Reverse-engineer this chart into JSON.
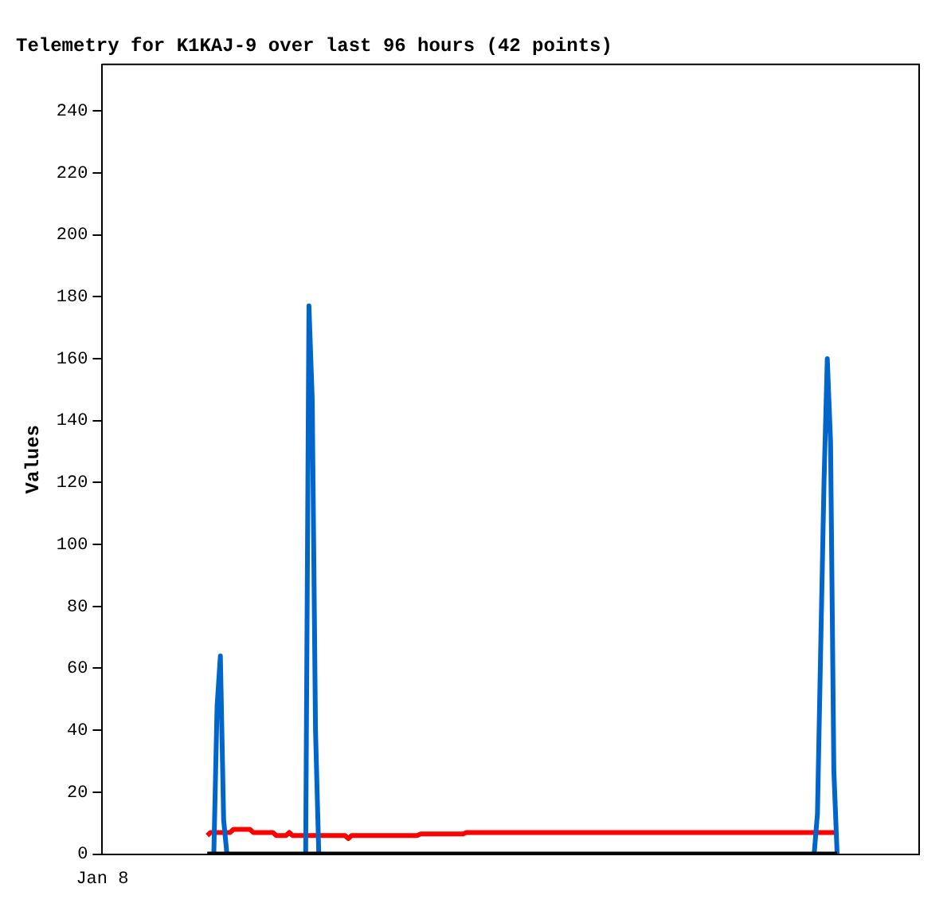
{
  "chart_data": {
    "type": "line",
    "title": "Telemetry for K1KAJ-9 over last 96 hours (42 points)",
    "ylabel": "Values",
    "categories": [
      null,
      null,
      null,
      null,
      null,
      null,
      null,
      null,
      null,
      null,
      null,
      null,
      null,
      null,
      null,
      null,
      null,
      null,
      null,
      null,
      null,
      null,
      null,
      null,
      null,
      null,
      null,
      null,
      null,
      null,
      null,
      null,
      null,
      null,
      null,
      null,
      null,
      null,
      null,
      null,
      null,
      null,
      null,
      null,
      null,
      null,
      null,
      null,
      null,
      null,
      null,
      null,
      null,
      null,
      null,
      null,
      null,
      null,
      null,
      null,
      null,
      null,
      null,
      null,
      null,
      null,
      null,
      null,
      null,
      null,
      null,
      null,
      null,
      null,
      null,
      null,
      null,
      null,
      null,
      null,
      null,
      null,
      null,
      null,
      null,
      null,
      null,
      null,
      null,
      null,
      null,
      null,
      null,
      null,
      null,
      null,
      null,
      null,
      null,
      null,
      null,
      null,
      null,
      null,
      null,
      null,
      null,
      null,
      null,
      null,
      null,
      null,
      null,
      null,
      null,
      null,
      null,
      null,
      null,
      null,
      null,
      null,
      null,
      null,
      null,
      null,
      null,
      null,
      null,
      null,
      null,
      null,
      null,
      null,
      null,
      null,
      null,
      null,
      null,
      null,
      null,
      null,
      null,
      null,
      null,
      null,
      null,
      null,
      null,
      null,
      null,
      null,
      null,
      null,
      null,
      null,
      null,
      null,
      null,
      null,
      null,
      null,
      null,
      null,
      null,
      null,
      null,
      null,
      null,
      null,
      null,
      null,
      null,
      null,
      null,
      null,
      null,
      null,
      null,
      null,
      null,
      null,
      null,
      null,
      null,
      null,
      null,
      null,
      null,
      null,
      null,
      null,
      null,
      null,
      null,
      null,
      null,
      null,
      null,
      null,
      null,
      null,
      null,
      null,
      null,
      null,
      null,
      null,
      null,
      null,
      null,
      null,
      null,
      null,
      null,
      null,
      null,
      null,
      null,
      null,
      null,
      null,
      null,
      null,
      null,
      null,
      null,
      null,
      null,
      null,
      null,
      null,
      null,
      null,
      null,
      null,
      null,
      null,
      null,
      null,
      null,
      null,
      null,
      null,
      null,
      null,
      null,
      null,
      null,
      null
    ],
    "annotations": [
      "Jan 8"
    ],
    "ylim": [
      0,
      255
    ],
    "yticks": [
      0,
      20,
      40,
      60,
      80,
      100,
      120,
      140,
      160,
      180,
      200,
      220,
      240
    ],
    "grid": false,
    "legend": false,
    "series": [
      {
        "color": "#ff0000",
        "values": [
          null,
          null,
          null,
          null,
          null,
          null,
          null,
          null,
          null,
          null,
          null,
          null,
          null,
          null,
          null,
          null,
          null,
          null,
          null,
          null,
          null,
          null,
          null,
          null,
          null,
          null,
          null,
          null,
          null,
          null,
          null,
          null,
          6,
          7,
          7,
          7,
          7,
          7,
          7,
          7,
          8,
          8,
          8,
          8,
          8,
          8,
          7,
          7,
          7,
          7,
          7,
          7,
          7,
          6,
          6,
          6,
          6,
          7,
          6,
          6,
          6,
          6,
          6,
          6,
          6,
          6,
          6,
          6,
          6,
          6,
          6,
          6,
          6,
          6,
          6,
          5,
          6,
          6,
          6,
          6,
          6,
          6,
          6,
          6,
          6,
          6,
          6,
          6,
          6,
          6,
          6,
          6,
          6,
          6,
          6,
          6,
          6,
          6.5,
          6.5,
          6.5,
          6.5,
          6.5,
          6.5,
          6.5,
          6.5,
          6.5,
          6.5,
          6.5,
          6.5,
          6.5,
          6.5,
          7,
          7,
          7,
          7,
          7,
          7,
          7,
          7,
          7,
          7,
          7,
          7,
          7,
          7,
          7,
          7,
          7,
          7,
          7,
          7,
          7,
          7,
          7,
          7,
          7,
          7,
          7,
          7,
          7,
          7,
          7,
          7,
          7,
          7,
          7,
          7,
          7,
          7,
          7,
          7,
          7,
          7,
          7,
          7,
          7,
          7,
          7,
          7,
          7,
          7,
          7,
          7,
          7,
          7,
          7,
          7,
          7,
          7,
          7,
          7,
          7,
          7,
          7,
          7,
          7,
          7,
          7,
          7,
          7,
          7,
          7,
          7,
          7,
          7,
          7,
          7,
          7,
          7,
          7,
          7,
          7,
          7,
          7,
          7,
          7,
          7,
          7,
          7,
          7,
          7,
          7,
          7,
          7,
          7,
          7,
          7,
          7,
          7,
          7,
          7,
          7,
          7,
          7,
          7,
          7,
          7,
          7,
          7,
          7,
          7,
          7,
          7,
          7,
          7,
          null,
          null,
          null,
          null,
          null,
          null,
          null,
          null,
          null,
          null,
          null,
          null,
          null,
          null,
          null,
          null,
          null,
          null,
          null,
          null,
          null,
          null,
          null,
          null,
          null
        ]
      },
      {
        "color": "#0066cc",
        "values": [
          null,
          null,
          null,
          null,
          null,
          null,
          null,
          null,
          null,
          null,
          null,
          null,
          null,
          null,
          null,
          null,
          null,
          null,
          null,
          null,
          null,
          null,
          null,
          null,
          null,
          null,
          null,
          null,
          null,
          null,
          null,
          null,
          null,
          null,
          0,
          48,
          64,
          11,
          0,
          null,
          null,
          null,
          null,
          null,
          null,
          null,
          null,
          null,
          null,
          null,
          null,
          null,
          null,
          null,
          null,
          null,
          null,
          null,
          null,
          null,
          null,
          null,
          0,
          177,
          147,
          40,
          0,
          null,
          null,
          null,
          null,
          null,
          null,
          null,
          null,
          null,
          null,
          null,
          null,
          null,
          null,
          null,
          null,
          null,
          null,
          null,
          null,
          null,
          null,
          null,
          null,
          null,
          null,
          null,
          null,
          null,
          null,
          null,
          null,
          null,
          null,
          null,
          null,
          null,
          null,
          null,
          null,
          null,
          null,
          null,
          null,
          null,
          null,
          null,
          null,
          null,
          null,
          null,
          null,
          null,
          null,
          null,
          null,
          null,
          null,
          null,
          null,
          null,
          null,
          null,
          null,
          null,
          null,
          null,
          null,
          null,
          null,
          null,
          null,
          null,
          null,
          null,
          null,
          null,
          null,
          null,
          null,
          null,
          null,
          null,
          null,
          null,
          null,
          null,
          null,
          null,
          null,
          null,
          null,
          null,
          null,
          null,
          null,
          null,
          null,
          null,
          null,
          null,
          null,
          null,
          null,
          null,
          null,
          null,
          null,
          null,
          null,
          null,
          null,
          null,
          null,
          null,
          null,
          null,
          null,
          null,
          null,
          null,
          null,
          null,
          null,
          null,
          null,
          null,
          null,
          null,
          null,
          null,
          null,
          null,
          null,
          null,
          null,
          null,
          null,
          null,
          null,
          null,
          null,
          null,
          null,
          null,
          null,
          null,
          null,
          null,
          null,
          0,
          13,
          67,
          120,
          160,
          133,
          27,
          0,
          null,
          null,
          null,
          null,
          null,
          null,
          null,
          null,
          null,
          null,
          null,
          null,
          null,
          null,
          null,
          null,
          null,
          null,
          null,
          null,
          null,
          null,
          null,
          null,
          null
        ]
      },
      {
        "color": "#000000",
        "values": [
          null,
          null,
          null,
          null,
          null,
          null,
          null,
          null,
          null,
          null,
          null,
          null,
          null,
          null,
          null,
          null,
          null,
          null,
          null,
          null,
          null,
          null,
          null,
          null,
          null,
          null,
          null,
          null,
          null,
          null,
          null,
          null,
          0,
          0,
          0,
          0,
          0,
          0,
          0,
          0,
          0,
          0,
          0,
          0,
          0,
          0,
          0,
          0,
          0,
          0,
          0,
          0,
          0,
          0,
          0,
          0,
          0,
          0,
          0,
          0,
          0,
          0,
          0,
          0,
          0,
          0,
          0,
          0,
          0,
          0,
          0,
          0,
          0,
          0,
          0,
          0,
          0,
          0,
          0,
          0,
          0,
          0,
          0,
          0,
          0,
          0,
          0,
          0,
          0,
          0,
          0,
          0,
          0,
          0,
          0,
          0,
          0,
          0,
          0,
          0,
          0,
          0,
          0,
          0,
          0,
          0,
          0,
          0,
          0,
          0,
          0,
          0,
          0,
          0,
          0,
          0,
          0,
          0,
          0,
          0,
          0,
          0,
          0,
          0,
          0,
          0,
          0,
          0,
          0,
          0,
          0,
          0,
          0,
          0,
          0,
          0,
          0,
          0,
          0,
          0,
          0,
          0,
          0,
          0,
          0,
          0,
          0,
          0,
          0,
          0,
          0,
          0,
          0,
          0,
          0,
          0,
          0,
          0,
          0,
          0,
          0,
          0,
          0,
          0,
          0,
          0,
          0,
          0,
          0,
          0,
          0,
          0,
          0,
          0,
          0,
          0,
          0,
          0,
          0,
          0,
          0,
          0,
          0,
          0,
          0,
          0,
          0,
          0,
          0,
          0,
          0,
          0,
          0,
          0,
          0,
          0,
          0,
          0,
          0,
          0,
          0,
          0,
          0,
          0,
          0,
          0,
          0,
          0,
          0,
          0,
          0,
          0,
          0,
          0,
          0,
          0,
          0,
          0,
          0,
          0,
          0,
          0,
          0,
          0,
          0,
          null,
          null,
          null,
          null,
          null,
          null,
          null,
          null,
          null,
          null,
          null,
          null,
          null,
          null,
          null,
          null,
          null,
          null,
          null,
          null,
          null,
          null,
          null,
          null,
          null
        ]
      }
    ]
  }
}
